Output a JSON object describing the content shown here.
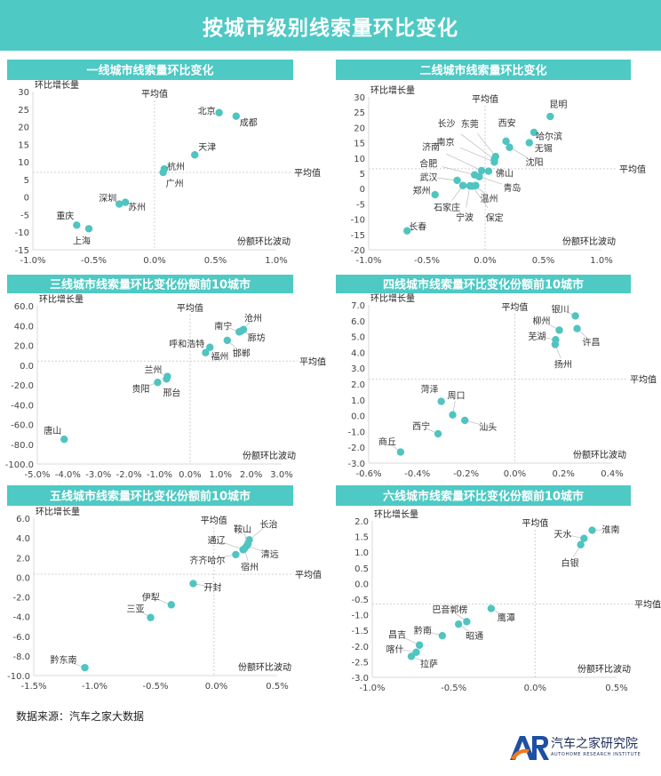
{
  "header": {
    "title": "按城市级别线索量环比变化"
  },
  "footer": {
    "source": "数据来源：汽车之家大数据",
    "logo_text": "汽车之家研究院",
    "logo_sub": "AUTOHOME RESEARCH INSTITUTE",
    "logo_letters": "AR"
  },
  "colors": {
    "accent": "#4ec9c4",
    "point": "#4fc4c0",
    "logo_blue": "#1f4fa3",
    "logo_orange": "#f07a1c"
  },
  "chart_data": [
    {
      "type": "scatter",
      "title": "一线城市线索量环比变化",
      "xlabel": "份额环比波动",
      "ylabel": "环比增长量",
      "avg_x_label": "平均值",
      "avg_y_label": "平均值",
      "xlim": [
        -1.0,
        1.0
      ],
      "ylim": [
        -15,
        30
      ],
      "avg_x": 0.0,
      "avg_y": 7,
      "xticks": [
        -1.0,
        -0.5,
        0.0,
        0.5,
        1.0
      ],
      "xtick_labels": [
        "-1.0%",
        "-0.5%",
        "0.0%",
        "0.5%",
        "1.0%"
      ],
      "yticks": [
        30,
        25,
        20,
        15,
        10,
        5,
        0,
        -5,
        -10,
        -15
      ],
      "ytick_labels": [
        "30",
        "25",
        "20",
        "15",
        "10",
        "5",
        "0",
        "-5",
        "-10",
        "-15"
      ],
      "points": [
        {
          "name": "北京",
          "x": 0.53,
          "y": 24
        },
        {
          "name": "成都",
          "x": 0.67,
          "y": 23
        },
        {
          "name": "天津",
          "x": 0.33,
          "y": 12
        },
        {
          "name": "杭州",
          "x": 0.08,
          "y": 8
        },
        {
          "name": "广州",
          "x": 0.07,
          "y": 7
        },
        {
          "name": "深圳",
          "x": -0.29,
          "y": -2
        },
        {
          "name": "苏州",
          "x": -0.24,
          "y": -1.5
        },
        {
          "name": "重庆",
          "x": -0.64,
          "y": -8
        },
        {
          "name": "上海",
          "x": -0.54,
          "y": -9
        }
      ]
    },
    {
      "type": "scatter",
      "title": "二线城市线索量环比变化",
      "xlabel": "份额环比波动",
      "ylabel": "环比增长量",
      "avg_x_label": "平均值",
      "avg_y_label": "平均值",
      "xlim": [
        -1.0,
        1.0
      ],
      "ylim": [
        -20,
        30
      ],
      "avg_x": 0.0,
      "avg_y": 6.5,
      "xticks": [
        -1.0,
        -0.5,
        0.0,
        0.5,
        1.0
      ],
      "xtick_labels": [
        "-1.0%",
        "-0.5%",
        "0.0%",
        "0.5%",
        "1.0%"
      ],
      "yticks": [
        30,
        25,
        20,
        15,
        10,
        5,
        0,
        -5,
        -10,
        -15,
        -20
      ],
      "ytick_labels": [
        "30",
        "25",
        "20",
        "15",
        "10",
        "5",
        "0",
        "-5",
        "-10",
        "-15",
        "-20"
      ],
      "points": [
        {
          "name": "昆明",
          "x": 0.56,
          "y": 23.6
        },
        {
          "name": "哈尔滨",
          "x": 0.42,
          "y": 18.4
        },
        {
          "name": "无锡",
          "x": 0.38,
          "y": 15
        },
        {
          "name": "西安",
          "x": 0.18,
          "y": 15.5
        },
        {
          "name": "沈阳",
          "x": 0.21,
          "y": 13.5
        },
        {
          "name": "东莞",
          "x": 0.09,
          "y": 10.5
        },
        {
          "name": "长沙",
          "x": 0.08,
          "y": 9.5
        },
        {
          "name": "南京",
          "x": 0.08,
          "y": 8.7
        },
        {
          "name": "济南",
          "x": -0.03,
          "y": 5.9
        },
        {
          "name": "佛山",
          "x": 0.03,
          "y": 5.7
        },
        {
          "name": "合肥",
          "x": -0.09,
          "y": 4.5
        },
        {
          "name": "青岛",
          "x": -0.05,
          "y": 3.9
        },
        {
          "name": "武汉",
          "x": -0.24,
          "y": 2.7
        },
        {
          "name": "石家庄",
          "x": -0.19,
          "y": 1.0
        },
        {
          "name": "宁波",
          "x": -0.13,
          "y": 0.9
        },
        {
          "name": "温州",
          "x": -0.08,
          "y": 1.0
        },
        {
          "name": "保定",
          "x": -0.11,
          "y": 0.8
        },
        {
          "name": "郑州",
          "x": -0.43,
          "y": -2
        },
        {
          "name": "长春",
          "x": -0.67,
          "y": -13.8
        }
      ]
    },
    {
      "type": "scatter",
      "title": "三线城市线索量环比变化份额前10城市",
      "xlabel": "份额环比波动",
      "ylabel": "环比增长量",
      "avg_x_label": "平均值",
      "avg_y_label": "平均值",
      "xlim": [
        -5.0,
        3.0
      ],
      "ylim": [
        -100,
        60
      ],
      "avg_x": 0.0,
      "avg_y": 4,
      "xticks": [
        -5,
        -4,
        -3,
        -2,
        -1,
        0,
        1,
        2,
        3
      ],
      "xtick_labels": [
        "-5.0%",
        "-4.0%",
        "-3.0%",
        "-2.0%",
        "-1.0%",
        "0.0%",
        "1.0%",
        "2.0%",
        "3.0%"
      ],
      "yticks": [
        60,
        40,
        20,
        0,
        -20,
        -40,
        -60,
        -80,
        -100
      ],
      "ytick_labels": [
        "60.0",
        "40.0",
        "20.0",
        "0.0",
        "-20.0",
        "-40.0",
        "-60.0",
        "-80.0",
        "-100.0"
      ],
      "points": [
        {
          "name": "沧州",
          "x": 1.75,
          "y": 36
        },
        {
          "name": "南宁",
          "x": 1.61,
          "y": 33.6
        },
        {
          "name": "廊坊",
          "x": 1.68,
          "y": 34.5
        },
        {
          "name": "邯郸",
          "x": 1.22,
          "y": 25
        },
        {
          "name": "呼和浩特",
          "x": 0.65,
          "y": 18
        },
        {
          "name": "福州",
          "x": 0.51,
          "y": 12.6
        },
        {
          "name": "兰州",
          "x": -0.74,
          "y": -11.5
        },
        {
          "name": "邢台",
          "x": -0.77,
          "y": -14
        },
        {
          "name": "贵阳",
          "x": -1.06,
          "y": -17.5
        },
        {
          "name": "唐山",
          "x": -4.12,
          "y": -75
        }
      ]
    },
    {
      "type": "scatter",
      "title": "四线城市线索量环比变化份额前10城市",
      "xlabel": "份额环比波动",
      "ylabel": "环比增长量",
      "avg_x_label": "平均值",
      "avg_y_label": "平均值",
      "xlim": [
        -0.6,
        0.4
      ],
      "ylim": [
        -3,
        7
      ],
      "avg_x": 0.0,
      "avg_y": 2.3,
      "xticks": [
        -0.6,
        -0.4,
        -0.2,
        0.0,
        0.2,
        0.4
      ],
      "xtick_labels": [
        "-0.6%",
        "-0.4%",
        "-0.2%",
        "0.0%",
        "0.2%",
        "0.4%"
      ],
      "yticks": [
        7,
        6,
        5,
        4,
        3,
        2,
        1,
        0,
        -1,
        -2,
        -3
      ],
      "ytick_labels": [
        "7.0",
        "6.0",
        "5.0",
        "4.0",
        "3.0",
        "2.0",
        "1.0",
        "0.0",
        "-1.0",
        "-2.0",
        "-3.0"
      ],
      "points": [
        {
          "name": "银川",
          "x": 0.249,
          "y": 6.3
        },
        {
          "name": "许昌",
          "x": 0.256,
          "y": 5.5
        },
        {
          "name": "柳州",
          "x": 0.183,
          "y": 5.4
        },
        {
          "name": "芜湖",
          "x": 0.168,
          "y": 4.8
        },
        {
          "name": "扬州",
          "x": 0.166,
          "y": 4.5
        },
        {
          "name": "菏泽",
          "x": -0.302,
          "y": 0.9
        },
        {
          "name": "周口",
          "x": -0.255,
          "y": 0.05
        },
        {
          "name": "汕头",
          "x": -0.205,
          "y": -0.3
        },
        {
          "name": "西宁",
          "x": -0.315,
          "y": -1.15
        },
        {
          "name": "商丘",
          "x": -0.469,
          "y": -2.3
        }
      ]
    },
    {
      "type": "scatter",
      "title": "五线城市线索量环比变化份额前10城市",
      "xlabel": "份额环比波动",
      "ylabel": "环比增长量",
      "avg_x_label": "平均值",
      "avg_y_label": "平均值",
      "xlim": [
        -1.5,
        0.5
      ],
      "ylim": [
        -10,
        6
      ],
      "avg_x": -0.02,
      "avg_y": 0.3,
      "xticks": [
        -1.5,
        -1.0,
        -0.5,
        0.0,
        0.5
      ],
      "xtick_labels": [
        "-1.5%",
        "-1.0%",
        "-0.5%",
        "0.0%",
        "0.5%"
      ],
      "yticks": [
        6,
        4,
        2,
        0,
        -2,
        -4,
        -6,
        -8,
        -10
      ],
      "ytick_labels": [
        "6.0",
        "4.0",
        "2.0",
        "0.0",
        "-2.0",
        "-4.0",
        "-6.0",
        "-8.0",
        "-10.0"
      ],
      "points": [
        {
          "name": "长治",
          "x": 0.27,
          "y": 3.8
        },
        {
          "name": "鞍山",
          "x": 0.26,
          "y": 3.4
        },
        {
          "name": "清远",
          "x": 0.25,
          "y": 3.2
        },
        {
          "name": "宿州",
          "x": 0.23,
          "y": 2.9
        },
        {
          "name": "通辽",
          "x": 0.22,
          "y": 2.8
        },
        {
          "name": "齐齐哈尔",
          "x": 0.16,
          "y": 2.3
        },
        {
          "name": "开封",
          "x": -0.19,
          "y": -0.65
        },
        {
          "name": "伊犁",
          "x": -0.37,
          "y": -2.8
        },
        {
          "name": "三亚",
          "x": -0.54,
          "y": -4.1
        },
        {
          "name": "黔东南",
          "x": -1.08,
          "y": -9.2
        }
      ]
    },
    {
      "type": "scatter",
      "title": "六线城市线索量环比变化份额前10城市",
      "xlabel": "份额环比波动",
      "ylabel": "环比增长量",
      "avg_x_label": "平均值",
      "avg_y_label": "平均值",
      "xlim": [
        -1.0,
        0.5
      ],
      "ylim": [
        -3,
        2
      ],
      "avg_x": 0.0,
      "avg_y": -0.66,
      "xticks": [
        -1.0,
        -0.5,
        0.0,
        0.5
      ],
      "xtick_labels": [
        "-1.0%",
        "-0.5%",
        "0.0%",
        "0.5%"
      ],
      "yticks": [
        2,
        1.5,
        1,
        0.5,
        0,
        -0.5,
        -1,
        -1.5,
        -2,
        -2.5,
        -3
      ],
      "ytick_labels": [
        "2.0",
        "1.5",
        "1.0",
        "0.5",
        "0.0",
        "-0.5",
        "-1.0",
        "-1.5",
        "-2.0",
        "-2.5",
        "-3.0"
      ],
      "points": [
        {
          "name": "淮南",
          "x": 0.35,
          "y": 1.7
        },
        {
          "name": "天水",
          "x": 0.3,
          "y": 1.44
        },
        {
          "name": "白银",
          "x": 0.28,
          "y": 1.24
        },
        {
          "name": "鹰潭",
          "x": -0.27,
          "y": -0.8
        },
        {
          "name": "巴音郭楞",
          "x": -0.42,
          "y": -1.22
        },
        {
          "name": "昭通",
          "x": -0.47,
          "y": -1.3
        },
        {
          "name": "黔南",
          "x": -0.57,
          "y": -1.67
        },
        {
          "name": "昌吉",
          "x": -0.71,
          "y": -1.97
        },
        {
          "name": "喀什",
          "x": -0.73,
          "y": -2.2
        },
        {
          "name": "拉萨",
          "x": -0.76,
          "y": -2.33
        }
      ]
    }
  ]
}
